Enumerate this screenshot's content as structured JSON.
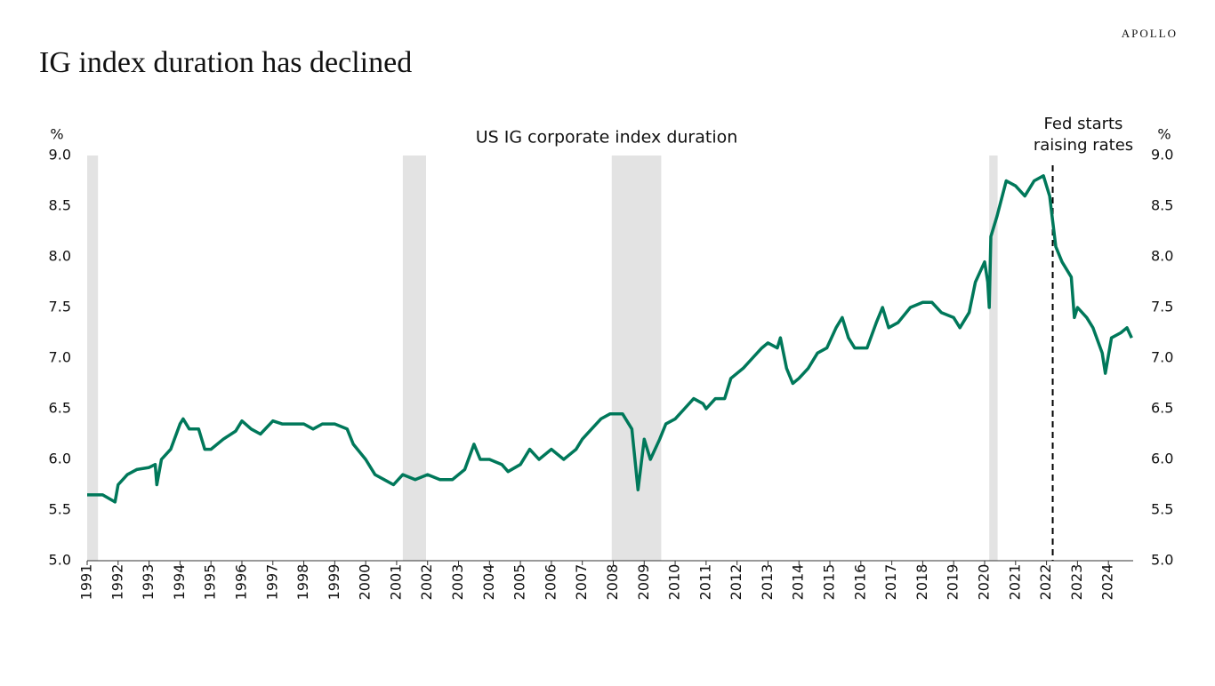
{
  "brand": "APOLLO",
  "chart_data": {
    "type": "line",
    "title": "IG index duration has declined",
    "subtitle": "US IG corporate index duration",
    "y_label": "%",
    "y2_label": "%",
    "color": "#00785a",
    "shade_color": "#e3e3e3",
    "shaded_periods": [
      [
        1991.0,
        1991.35
      ],
      [
        2001.2,
        2001.95
      ],
      [
        2007.95,
        2009.55
      ],
      [
        2020.15,
        2020.42
      ]
    ],
    "annotation": {
      "text": [
        "Fed starts",
        "raising rates"
      ],
      "x": 2022.2
    },
    "xlim": [
      1991,
      2024.8
    ],
    "xticks": [
      1991,
      1992,
      1993,
      1994,
      1995,
      1996,
      1997,
      1998,
      1999,
      2000,
      2001,
      2002,
      2003,
      2004,
      2005,
      2006,
      2007,
      2008,
      2009,
      2010,
      2011,
      2012,
      2013,
      2014,
      2015,
      2016,
      2017,
      2018,
      2019,
      2020,
      2021,
      2022,
      2023,
      2024
    ],
    "ylim": [
      5,
      9
    ],
    "yticks": [
      {
        "value": 5,
        "label": "5.0"
      },
      {
        "value": 5.5,
        "label": "5.5"
      },
      {
        "value": 6,
        "label": "6.0"
      },
      {
        "value": 6.5,
        "label": "6.5"
      },
      {
        "value": 7,
        "label": "7.0"
      },
      {
        "value": 7.5,
        "label": "7.5"
      },
      {
        "value": 8,
        "label": "8.0"
      },
      {
        "value": 8.5,
        "label": "8.5"
      },
      {
        "value": 9,
        "label": "9.0"
      }
    ],
    "y2lim": [
      5,
      9
    ],
    "y2ticks": [
      {
        "value": 5,
        "label": "5.0"
      },
      {
        "value": 5.5,
        "label": "5.5"
      },
      {
        "value": 6,
        "label": "6.0"
      },
      {
        "value": 6.5,
        "label": "6.5"
      },
      {
        "value": 7,
        "label": "7.0"
      },
      {
        "value": 7.5,
        "label": "7.5"
      },
      {
        "value": 8,
        "label": "8.0"
      },
      {
        "value": 8.5,
        "label": "8.5"
      },
      {
        "value": 9,
        "label": "9.0"
      }
    ],
    "x": [
      1991.0,
      1991.5,
      1991.9,
      1992.0,
      1992.3,
      1992.6,
      1993.0,
      1993.2,
      1993.25,
      1993.4,
      1993.7,
      1994.0,
      1994.1,
      1994.3,
      1994.6,
      1994.8,
      1995.0,
      1995.4,
      1995.8,
      1996.0,
      1996.3,
      1996.6,
      1997.0,
      1997.3,
      1997.7,
      1998.0,
      1998.3,
      1998.6,
      1999.0,
      1999.4,
      1999.6,
      2000.0,
      2000.3,
      2000.6,
      2000.9,
      2001.2,
      2001.6,
      2002.0,
      2002.4,
      2002.8,
      2003.2,
      2003.5,
      2003.7,
      2004.0,
      2004.4,
      2004.6,
      2005.0,
      2005.3,
      2005.6,
      2006.0,
      2006.4,
      2006.8,
      2007.0,
      2007.3,
      2007.6,
      2007.9,
      2008.3,
      2008.6,
      2008.8,
      2009.0,
      2009.2,
      2009.5,
      2009.7,
      2010.0,
      2010.3,
      2010.6,
      2010.9,
      2011.0,
      2011.3,
      2011.6,
      2011.8,
      2012.2,
      2012.5,
      2012.8,
      2013.0,
      2013.3,
      2013.4,
      2013.6,
      2013.8,
      2014.0,
      2014.3,
      2014.6,
      2014.9,
      2015.2,
      2015.4,
      2015.6,
      2015.8,
      2016.2,
      2016.5,
      2016.7,
      2016.9,
      2017.2,
      2017.6,
      2018.0,
      2018.3,
      2018.6,
      2019.0,
      2019.2,
      2019.5,
      2019.7,
      2020.0,
      2020.1,
      2020.15,
      2020.2,
      2020.4,
      2020.7,
      2021.0,
      2021.3,
      2021.6,
      2021.9,
      2022.1,
      2022.3,
      2022.5,
      2022.8,
      2022.9,
      2023.0,
      2023.3,
      2023.5,
      2023.8,
      2023.9,
      2024.1,
      2024.4,
      2024.6,
      2024.75
    ],
    "values": [
      5.65,
      5.65,
      5.58,
      5.75,
      5.85,
      5.9,
      5.92,
      5.95,
      5.75,
      6.0,
      6.1,
      6.35,
      6.4,
      6.3,
      6.3,
      6.1,
      6.1,
      6.2,
      6.28,
      6.38,
      6.3,
      6.25,
      6.38,
      6.35,
      6.35,
      6.35,
      6.3,
      6.35,
      6.35,
      6.3,
      6.15,
      6.0,
      5.85,
      5.8,
      5.75,
      5.85,
      5.8,
      5.85,
      5.8,
      5.8,
      5.9,
      6.15,
      6.0,
      6.0,
      5.95,
      5.88,
      5.95,
      6.1,
      6.0,
      6.1,
      6.0,
      6.1,
      6.2,
      6.3,
      6.4,
      6.45,
      6.45,
      6.3,
      5.7,
      6.2,
      6.0,
      6.2,
      6.35,
      6.4,
      6.5,
      6.6,
      6.55,
      6.5,
      6.6,
      6.6,
      6.8,
      6.9,
      7.0,
      7.1,
      7.15,
      7.1,
      7.2,
      6.9,
      6.75,
      6.8,
      6.9,
      7.05,
      7.1,
      7.3,
      7.4,
      7.2,
      7.1,
      7.1,
      7.35,
      7.5,
      7.3,
      7.35,
      7.5,
      7.55,
      7.55,
      7.45,
      7.4,
      7.3,
      7.45,
      7.75,
      7.95,
      7.75,
      7.5,
      8.2,
      8.4,
      8.75,
      8.7,
      8.6,
      8.75,
      8.8,
      8.6,
      8.1,
      7.95,
      7.8,
      7.4,
      7.5,
      7.4,
      7.3,
      7.05,
      6.85,
      7.2,
      7.25,
      7.3,
      7.2
    ]
  }
}
